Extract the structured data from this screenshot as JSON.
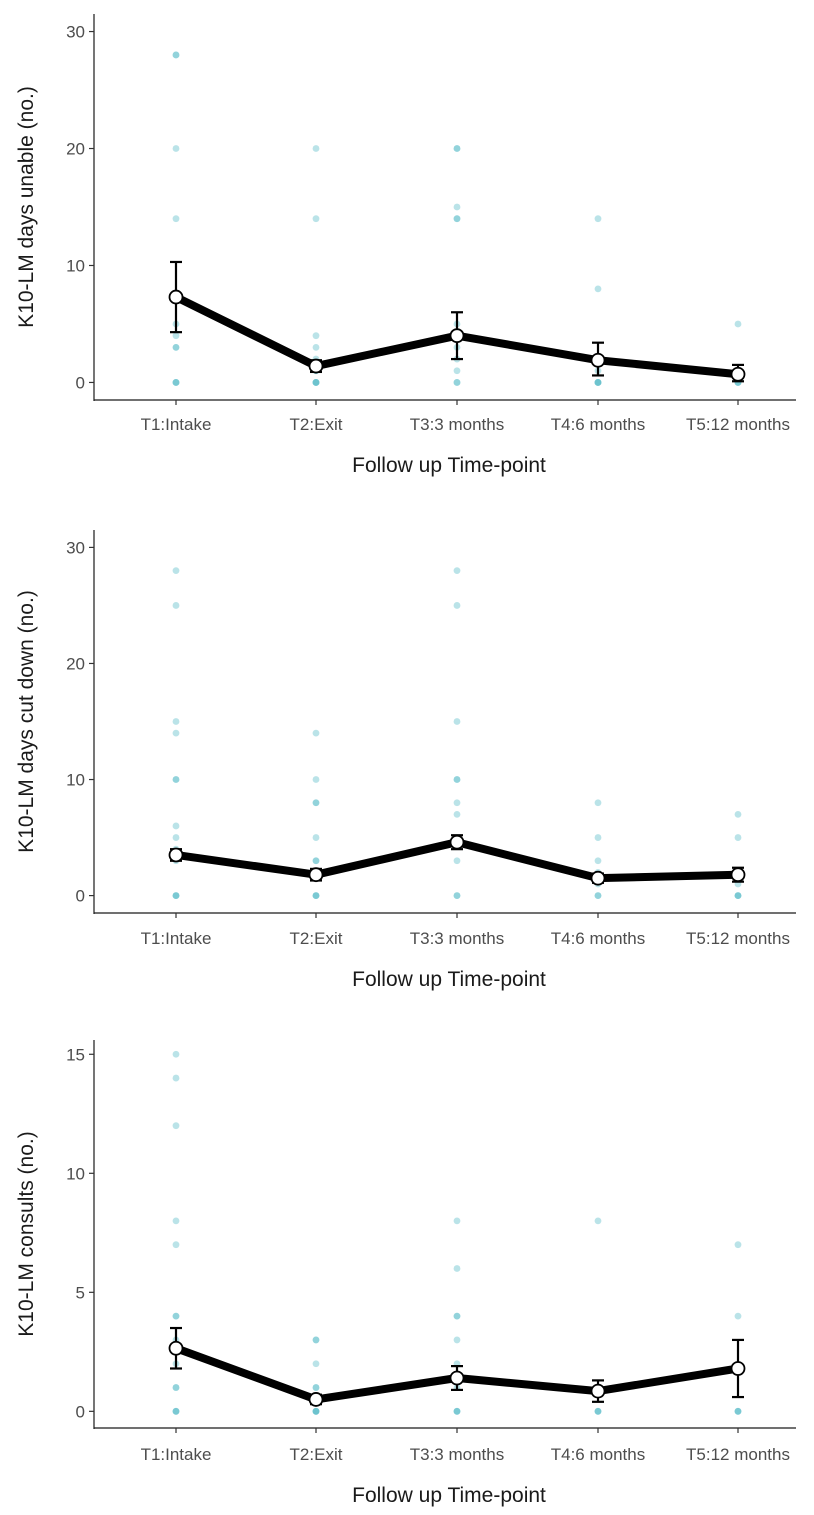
{
  "chart_data": [
    {
      "type": "line",
      "xlabel": "Follow up Time-point",
      "ylabel": "K10-LM days unable (no.)",
      "categories": [
        "T1:Intake",
        "T2:Exit",
        "T3:3 months",
        "T4:6 months",
        "T5:12 months"
      ],
      "ylim": [
        -1.5,
        31.5
      ],
      "yticks": [
        0,
        10,
        20,
        30
      ],
      "grid": false,
      "mean": [
        7.3,
        1.4,
        4.0,
        1.9,
        0.7
      ],
      "error_low": [
        4.3,
        0.9,
        2.0,
        0.6,
        0.1
      ],
      "error_high": [
        10.3,
        1.9,
        6.0,
        3.4,
        1.5
      ],
      "points": [
        [
          0,
          0,
          0,
          3,
          3,
          4,
          5,
          7,
          14,
          20,
          28,
          28
        ],
        [
          0,
          0,
          0,
          0,
          1,
          1,
          2,
          3,
          4,
          14,
          20
        ],
        [
          0,
          0,
          1,
          2,
          3,
          4,
          5,
          14,
          14,
          15,
          20,
          20
        ],
        [
          0,
          0,
          0,
          0,
          1,
          2,
          8,
          14
        ],
        [
          0,
          0,
          0,
          1,
          5
        ]
      ]
    },
    {
      "type": "line",
      "xlabel": "Follow up Time-point",
      "ylabel": "K10-LM days cut down (no.)",
      "categories": [
        "T1:Intake",
        "T2:Exit",
        "T3:3 months",
        "T4:6 months",
        "T5:12 months"
      ],
      "ylim": [
        -1.5,
        31.5
      ],
      "yticks": [
        0,
        10,
        20,
        30
      ],
      "grid": false,
      "mean": [
        3.5,
        1.8,
        4.6,
        1.5,
        1.8
      ],
      "error_low": [
        3.0,
        1.3,
        4.0,
        1.1,
        1.2
      ],
      "error_high": [
        4.0,
        2.3,
        5.2,
        1.9,
        2.4
      ],
      "points": [
        [
          0,
          0,
          0,
          3,
          4,
          5,
          6,
          10,
          10,
          14,
          15,
          25,
          28
        ],
        [
          0,
          0,
          0,
          2,
          3,
          3,
          5,
          8,
          8,
          10,
          14
        ],
        [
          0,
          0,
          3,
          5,
          7,
          8,
          10,
          10,
          15,
          25,
          28
        ],
        [
          0,
          0,
          1,
          2,
          3,
          5,
          8
        ],
        [
          0,
          0,
          0,
          1,
          2,
          5,
          7
        ]
      ]
    },
    {
      "type": "line",
      "xlabel": "Follow up Time-point",
      "ylabel": "K10-LM consults (no.)",
      "categories": [
        "T1:Intake",
        "T2:Exit",
        "T3:3 months",
        "T4:6 months",
        "T5:12 months"
      ],
      "ylim": [
        -0.7,
        15.6
      ],
      "yticks": [
        0,
        5,
        10,
        15
      ],
      "grid": false,
      "mean": [
        2.65,
        0.5,
        1.4,
        0.85,
        1.8
      ],
      "error_low": [
        1.8,
        0.3,
        0.9,
        0.4,
        0.6
      ],
      "error_high": [
        3.5,
        0.7,
        1.9,
        1.3,
        3.0
      ],
      "points": [
        [
          0,
          0,
          0,
          1,
          1,
          2,
          3,
          4,
          4,
          7,
          8,
          12,
          14,
          15
        ],
        [
          0,
          0,
          0,
          0,
          1,
          1,
          2,
          3,
          3
        ],
        [
          0,
          0,
          0,
          1,
          2,
          3,
          4,
          4,
          6,
          8
        ],
        [
          0,
          0,
          0,
          1,
          1,
          8
        ],
        [
          0,
          0,
          0,
          4,
          7
        ]
      ]
    }
  ]
}
